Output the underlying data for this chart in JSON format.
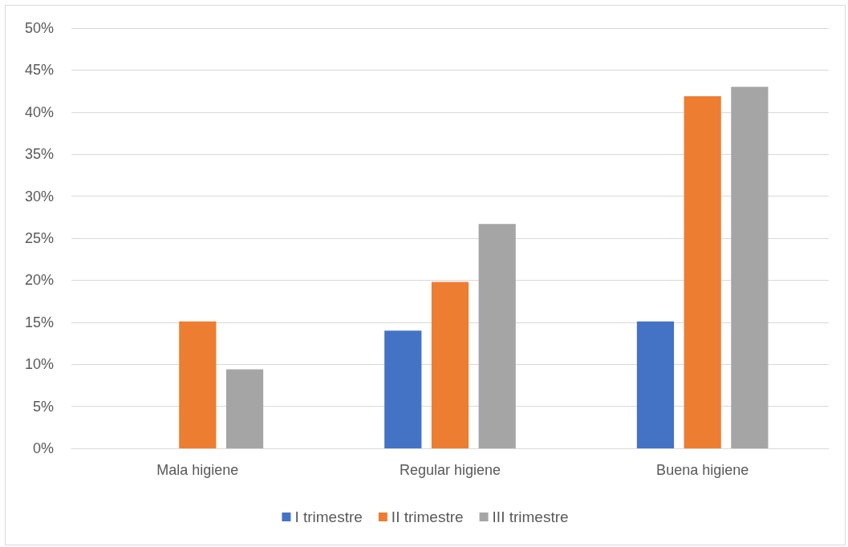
{
  "chart_data": {
    "type": "bar",
    "categories": [
      "Mala higiene",
      "Regular higiene",
      "Buena higiene"
    ],
    "series": [
      {
        "name": "I trimestre",
        "color": "#4472c4",
        "values": [
          0,
          14.0,
          15.1
        ]
      },
      {
        "name": "II trimestre",
        "color": "#ed7d31",
        "values": [
          15.1,
          19.8,
          41.9
        ]
      },
      {
        "name": "III trimestre",
        "color": "#a5a5a5",
        "values": [
          9.4,
          26.7,
          43.0
        ]
      }
    ],
    "ylim": [
      0,
      50
    ],
    "yticks": [
      {
        "value": 0,
        "label": "0%"
      },
      {
        "value": 5,
        "label": "5%"
      },
      {
        "value": 10,
        "label": "10%"
      },
      {
        "value": 15,
        "label": "15%"
      },
      {
        "value": 20,
        "label": "20%"
      },
      {
        "value": 25,
        "label": "25%"
      },
      {
        "value": 30,
        "label": "30%"
      },
      {
        "value": 35,
        "label": "35%"
      },
      {
        "value": 40,
        "label": "40%"
      },
      {
        "value": 45,
        "label": "45%"
      },
      {
        "value": 50,
        "label": "50%"
      }
    ],
    "grid": "y",
    "legend": "bottom"
  }
}
